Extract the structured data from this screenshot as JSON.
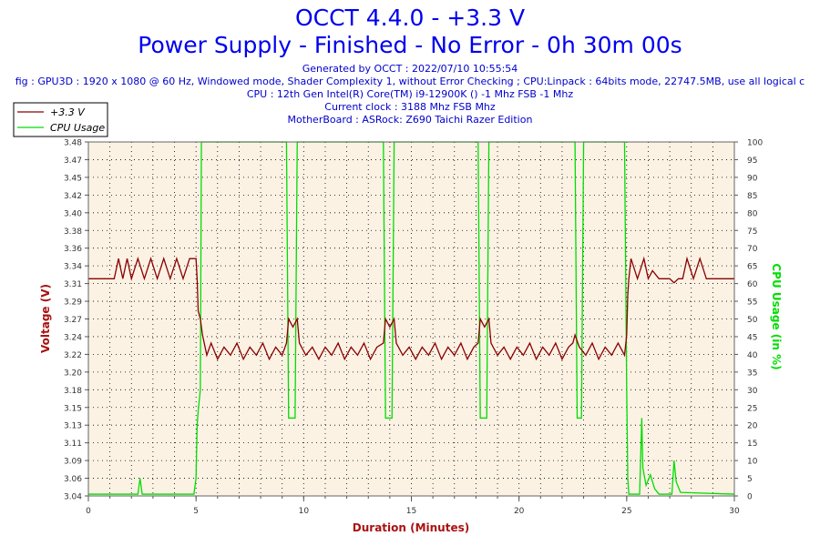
{
  "header": {
    "title_line1": "OCCT 4.4.0 - +3.3 V",
    "title_line2": "Power Supply - Finished - No Error - 0h 30m 00s",
    "info_lines": [
      "Generated by OCCT : 2022/07/10 10:55:54",
      "fig : GPU3D : 1920 x 1080 @ 60 Hz, Windowed mode, Shader Complexity 1, without Error Checking ; CPU:Linpack : 64bits mode, 22747.5MB, use all logical c",
      "CPU : 12th Gen Intel(R) Core(TM) i9-12900K () -1 Mhz FSB -1 Mhz",
      "Current clock : 3188 Mhz FSB  Mhz",
      "MotherBoard : ASRock: Z690 Taichi Razer Edition"
    ]
  },
  "chart_data": {
    "type": "line",
    "xlabel": "Duration (Minutes)",
    "ylabel_left": "Voltage (V)",
    "ylabel_right": "CPU Usage (in %)",
    "x_range": [
      0,
      30
    ],
    "x_ticks": [
      "0",
      "5",
      "10",
      "15",
      "20",
      "25",
      "30"
    ],
    "y_left_range": [
      3.04,
      3.48
    ],
    "y_left_ticks": [
      "3.04",
      "3.06",
      "3.09",
      "3.11",
      "3.13",
      "3.15",
      "3.18",
      "3.20",
      "3.22",
      "3.24",
      "3.27",
      "3.29",
      "3.31",
      "3.34",
      "3.36",
      "3.38",
      "3.40",
      "3.42",
      "3.45",
      "3.47",
      "3.48"
    ],
    "y_right_range": [
      0,
      100
    ],
    "y_right_ticks": [
      "0",
      "5",
      "10",
      "15",
      "20",
      "25",
      "30",
      "35",
      "40",
      "45",
      "50",
      "55",
      "60",
      "65",
      "70",
      "75",
      "80",
      "85",
      "90",
      "95",
      "100"
    ],
    "grid": true,
    "legend_position": "top-left",
    "colors": {
      "voltage": "#8b0000",
      "cpu": "#00dd00",
      "plot_bg": "#fbf2e4",
      "title": "#0000ee",
      "axis_label": "#aa1111"
    },
    "series": [
      {
        "name": "+3.3 V",
        "axis": "left",
        "points": [
          [
            0,
            3.31
          ],
          [
            1.2,
            3.31
          ],
          [
            1.4,
            3.335
          ],
          [
            1.6,
            3.31
          ],
          [
            1.8,
            3.335
          ],
          [
            2.0,
            3.31
          ],
          [
            2.3,
            3.335
          ],
          [
            2.6,
            3.31
          ],
          [
            2.9,
            3.335
          ],
          [
            3.2,
            3.31
          ],
          [
            3.5,
            3.335
          ],
          [
            3.8,
            3.31
          ],
          [
            4.1,
            3.335
          ],
          [
            4.4,
            3.31
          ],
          [
            4.7,
            3.335
          ],
          [
            5.0,
            3.335
          ],
          [
            5.05,
            3.31
          ],
          [
            5.1,
            3.27
          ],
          [
            5.2,
            3.26
          ],
          [
            5.3,
            3.24
          ],
          [
            5.5,
            3.215
          ],
          [
            5.7,
            3.23
          ],
          [
            6.0,
            3.21
          ],
          [
            6.3,
            3.225
          ],
          [
            6.6,
            3.215
          ],
          [
            6.9,
            3.23
          ],
          [
            7.2,
            3.21
          ],
          [
            7.5,
            3.225
          ],
          [
            7.8,
            3.215
          ],
          [
            8.1,
            3.23
          ],
          [
            8.4,
            3.21
          ],
          [
            8.7,
            3.225
          ],
          [
            9.0,
            3.215
          ],
          [
            9.2,
            3.23
          ],
          [
            9.3,
            3.26
          ],
          [
            9.5,
            3.25
          ],
          [
            9.7,
            3.26
          ],
          [
            9.8,
            3.23
          ],
          [
            10.1,
            3.215
          ],
          [
            10.4,
            3.225
          ],
          [
            10.7,
            3.21
          ],
          [
            11.0,
            3.225
          ],
          [
            11.3,
            3.215
          ],
          [
            11.6,
            3.23
          ],
          [
            11.9,
            3.21
          ],
          [
            12.2,
            3.225
          ],
          [
            12.5,
            3.215
          ],
          [
            12.8,
            3.23
          ],
          [
            13.1,
            3.21
          ],
          [
            13.4,
            3.225
          ],
          [
            13.7,
            3.23
          ],
          [
            13.8,
            3.26
          ],
          [
            14.0,
            3.25
          ],
          [
            14.2,
            3.26
          ],
          [
            14.3,
            3.23
          ],
          [
            14.6,
            3.215
          ],
          [
            14.9,
            3.225
          ],
          [
            15.2,
            3.21
          ],
          [
            15.5,
            3.225
          ],
          [
            15.8,
            3.215
          ],
          [
            16.1,
            3.23
          ],
          [
            16.4,
            3.21
          ],
          [
            16.7,
            3.225
          ],
          [
            17.0,
            3.215
          ],
          [
            17.3,
            3.23
          ],
          [
            17.6,
            3.21
          ],
          [
            17.9,
            3.225
          ],
          [
            18.1,
            3.23
          ],
          [
            18.2,
            3.26
          ],
          [
            18.4,
            3.25
          ],
          [
            18.6,
            3.26
          ],
          [
            18.7,
            3.23
          ],
          [
            19.0,
            3.215
          ],
          [
            19.3,
            3.225
          ],
          [
            19.6,
            3.21
          ],
          [
            19.9,
            3.225
          ],
          [
            20.2,
            3.215
          ],
          [
            20.5,
            3.23
          ],
          [
            20.8,
            3.21
          ],
          [
            21.1,
            3.225
          ],
          [
            21.4,
            3.215
          ],
          [
            21.7,
            3.23
          ],
          [
            22.0,
            3.21
          ],
          [
            22.3,
            3.225
          ],
          [
            22.5,
            3.23
          ],
          [
            22.6,
            3.24
          ],
          [
            22.8,
            3.225
          ],
          [
            23.1,
            3.215
          ],
          [
            23.4,
            3.23
          ],
          [
            23.7,
            3.21
          ],
          [
            24.0,
            3.225
          ],
          [
            24.3,
            3.215
          ],
          [
            24.6,
            3.23
          ],
          [
            24.9,
            3.215
          ],
          [
            25.0,
            3.24
          ],
          [
            25.05,
            3.29
          ],
          [
            25.1,
            3.31
          ],
          [
            25.2,
            3.335
          ],
          [
            25.5,
            3.31
          ],
          [
            25.8,
            3.335
          ],
          [
            26.0,
            3.31
          ],
          [
            26.2,
            3.32
          ],
          [
            26.5,
            3.31
          ],
          [
            26.8,
            3.31
          ],
          [
            27.0,
            3.31
          ],
          [
            27.2,
            3.305
          ],
          [
            27.4,
            3.31
          ],
          [
            27.6,
            3.31
          ],
          [
            27.8,
            3.335
          ],
          [
            28.1,
            3.31
          ],
          [
            28.4,
            3.335
          ],
          [
            28.7,
            3.31
          ],
          [
            29.0,
            3.31
          ],
          [
            30,
            3.31
          ]
        ]
      },
      {
        "name": "CPU Usage",
        "axis": "right",
        "points": [
          [
            0,
            0.5
          ],
          [
            2.3,
            0.5
          ],
          [
            2.4,
            5
          ],
          [
            2.5,
            0.5
          ],
          [
            4.9,
            0.5
          ],
          [
            5.0,
            5
          ],
          [
            5.05,
            20
          ],
          [
            5.1,
            24
          ],
          [
            5.2,
            30
          ],
          [
            5.25,
            100
          ],
          [
            9.2,
            100
          ],
          [
            9.3,
            22
          ],
          [
            9.6,
            22
          ],
          [
            9.7,
            100
          ],
          [
            13.7,
            100
          ],
          [
            13.8,
            22
          ],
          [
            14.1,
            22
          ],
          [
            14.2,
            100
          ],
          [
            18.1,
            100
          ],
          [
            18.2,
            22
          ],
          [
            18.5,
            22
          ],
          [
            18.6,
            100
          ],
          [
            22.6,
            100
          ],
          [
            22.7,
            22
          ],
          [
            22.9,
            22
          ],
          [
            23.0,
            100
          ],
          [
            24.9,
            100
          ],
          [
            25.0,
            30
          ],
          [
            25.05,
            5
          ],
          [
            25.1,
            0.5
          ],
          [
            25.6,
            0.5
          ],
          [
            25.7,
            22
          ],
          [
            25.75,
            8
          ],
          [
            25.9,
            3
          ],
          [
            26.1,
            6
          ],
          [
            26.3,
            2
          ],
          [
            26.5,
            0.5
          ],
          [
            27.1,
            0.5
          ],
          [
            27.2,
            10
          ],
          [
            27.3,
            4
          ],
          [
            27.5,
            1
          ],
          [
            30,
            0.5
          ]
        ]
      }
    ]
  }
}
